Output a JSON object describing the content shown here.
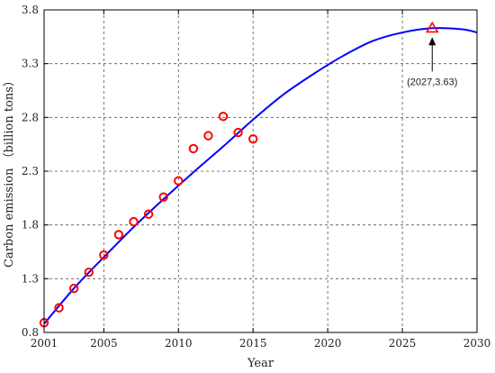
{
  "chart_data": {
    "type": "line",
    "xlabel": "Year",
    "ylabel": "Carbon emission （billion tons）",
    "xlim": [
      2001,
      2030
    ],
    "ylim": [
      0.8,
      3.8
    ],
    "xticks": [
      "2001",
      "2005",
      "2010",
      "2015",
      "2020",
      "2025",
      "2030"
    ],
    "yticks": [
      "0.8",
      "1.3",
      "1.8",
      "2.3",
      "2.8",
      "3.3",
      "3.8"
    ],
    "grid": true,
    "series": [
      {
        "kind": "line",
        "color": "#0000ff",
        "x": [
          2001,
          2003,
          2005,
          2007,
          2009,
          2011,
          2013,
          2015,
          2017,
          2019,
          2021,
          2023,
          2025,
          2027,
          2029,
          2030
        ],
        "y": [
          0.88,
          1.21,
          1.5,
          1.78,
          2.04,
          2.29,
          2.53,
          2.78,
          3.01,
          3.2,
          3.37,
          3.51,
          3.59,
          3.63,
          3.62,
          3.59
        ]
      },
      {
        "kind": "scatter",
        "marker": "circle",
        "color": "#ff0000",
        "x": [
          2001,
          2002,
          2003,
          2004,
          2005,
          2006,
          2007,
          2008,
          2009,
          2010,
          2011,
          2012,
          2013,
          2014,
          2015
        ],
        "y": [
          0.89,
          1.03,
          1.21,
          1.36,
          1.52,
          1.71,
          1.83,
          1.9,
          2.06,
          2.21,
          2.51,
          2.63,
          2.81,
          2.66,
          2.6
        ]
      },
      {
        "kind": "point",
        "marker": "triangle",
        "color": "#ff0000",
        "x": [
          2027
        ],
        "y": [
          3.63
        ]
      }
    ],
    "annotations": [
      {
        "text": "(2027,3.63)",
        "x": 2027,
        "y": 3.63
      }
    ]
  }
}
